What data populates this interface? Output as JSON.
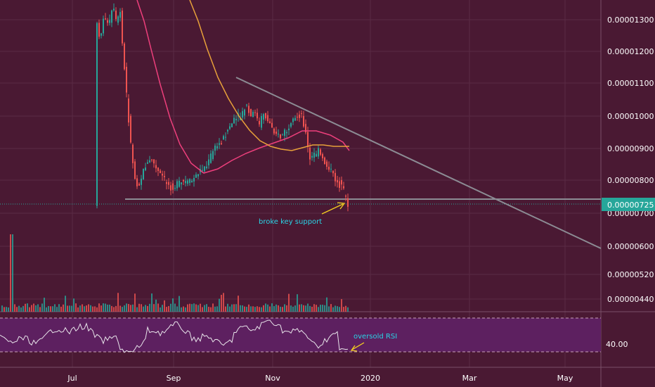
{
  "chart_data": {
    "type": "line",
    "price_axis": {
      "ticks": [
        "0.00001300",
        "0.00001200",
        "0.00001100",
        "0.00001000",
        "0.00000900",
        "0.00000800",
        "0.00000700",
        "0.00000600",
        "0.00000520",
        "0.00000440"
      ],
      "current_price_label": "0.00000725"
    },
    "time_axis": {
      "ticks": [
        "Jul",
        "Sep",
        "Nov",
        "2020",
        "Mar",
        "May"
      ]
    },
    "rsi": {
      "level_label": "40.00"
    },
    "annotations": {
      "support_note": "broke key support",
      "rsi_note": "oversold RSI"
    },
    "colors": {
      "background": "#4a1933",
      "bull_candle": "#26a69a",
      "bear_candle": "#ef5350",
      "ma_fast": "#ee3f7c",
      "ma_slow": "#e8a13a",
      "trendline": "#8c8c94",
      "current_price_badge": "#26a69a",
      "annotation_text": "#29d4e6",
      "arrow": "#f5d020",
      "rsi_band": "#5d2060"
    }
  }
}
